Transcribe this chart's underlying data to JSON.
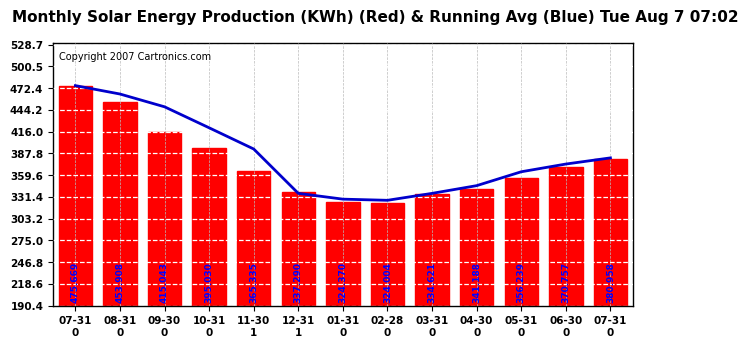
{
  "title": "Monthly Solar Energy Production (KWh) (Red) & Running Avg (Blue) Tue Aug 7 07:02",
  "copyright": "Copyright 2007 Cartronics.com",
  "categories": [
    "07-31\n0",
    "08-31\n0",
    "09-30\n0",
    "10-31\n0",
    "11-30\n1",
    "12-31\n1",
    "01-31\n0",
    "02-28\n0",
    "03-31\n0",
    "04-30\n0",
    "05-31\n0",
    "06-30\n0",
    "07-31\n0"
  ],
  "bar_values": [
    475.669,
    453.908,
    415.043,
    395.03,
    365.335,
    337.29,
    324.37,
    324.004,
    334.621,
    341.188,
    356.239,
    370.757,
    380.958
  ],
  "bar_labels": [
    "475.669",
    "453.908",
    "415.043",
    "395.030",
    "365.335",
    "337.290",
    "324.370",
    "324.004",
    "334.621",
    "341.188",
    "356.239",
    "370.757",
    "380.958"
  ],
  "running_avg": [
    475.669,
    464.789,
    448.207,
    420.997,
    393.5,
    336.0,
    328.5,
    327.0,
    336.0,
    346.0,
    364.0,
    374.0,
    382.0
  ],
  "bar_color": "#ff0000",
  "line_color": "#0000cc",
  "bg_color": "#ffffff",
  "grid_color": "#ffffff",
  "ytick_labels": [
    "190.4",
    "218.6",
    "246.8",
    "275.0",
    "303.2",
    "331.4",
    "359.6",
    "387.8",
    "416.0",
    "444.2",
    "472.4",
    "500.5",
    "528.7"
  ],
  "ymin": 190.4,
  "ymax": 528.7,
  "title_fontsize": 11,
  "copyright_fontsize": 7,
  "label_fontsize": 6.5
}
